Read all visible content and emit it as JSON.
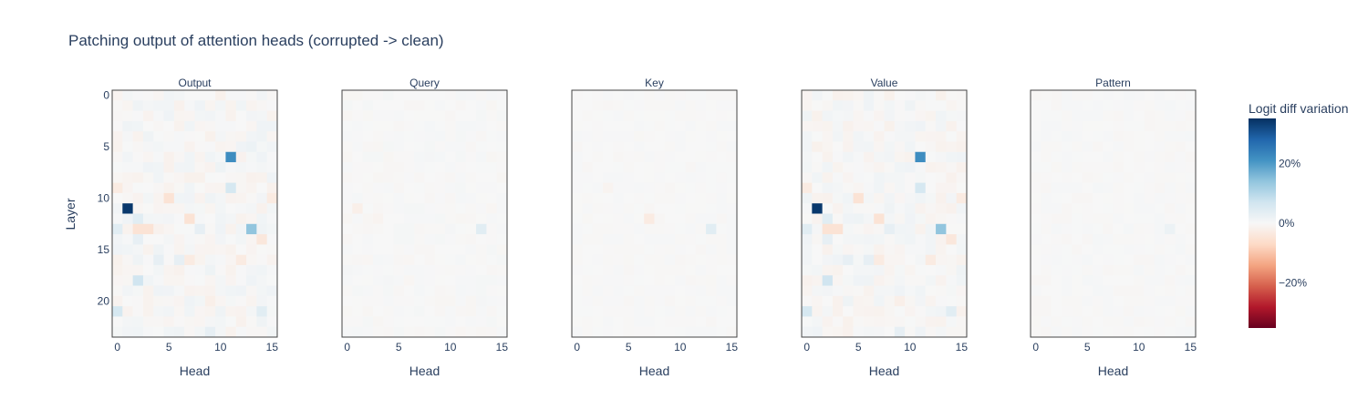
{
  "chart_data": {
    "type": "heatmap",
    "title": "Patching output of attention heads (corrupted -> clean)",
    "panels": [
      "Output",
      "Query",
      "Key",
      "Value",
      "Pattern"
    ],
    "xlabel": "Head",
    "ylabel": "Layer",
    "x_ticks": [
      0,
      5,
      10,
      15
    ],
    "y_ticks": [
      0,
      5,
      10,
      15,
      20
    ],
    "x_range": [
      0,
      15
    ],
    "y_range": [
      0,
      23
    ],
    "colorbar": {
      "title": "Logit diff variation",
      "tick_labels": [
        "20%",
        "0%",
        "−20%"
      ],
      "tick_values": [
        20,
        0,
        -20
      ],
      "range": [
        -35,
        35
      ],
      "colorscale": [
        "#67001f",
        "#b2182b",
        "#d6604d",
        "#f4a582",
        "#fddbc7",
        "#f7f7f7",
        "#d1e5f0",
        "#92c5de",
        "#4393c3",
        "#2166ac",
        "#053061"
      ]
    },
    "notable_cells": {
      "Output": [
        {
          "layer": 11,
          "head": 1,
          "value": 34
        },
        {
          "layer": 6,
          "head": 11,
          "value": 22
        },
        {
          "layer": 13,
          "head": 13,
          "value": 14
        },
        {
          "layer": 9,
          "head": 11,
          "value": 6
        },
        {
          "layer": 18,
          "head": 2,
          "value": 7
        },
        {
          "layer": 21,
          "head": 0,
          "value": 6
        },
        {
          "layer": 13,
          "head": 0,
          "value": 4
        },
        {
          "layer": 12,
          "head": 2,
          "value": 4
        },
        {
          "layer": 21,
          "head": 14,
          "value": 4
        },
        {
          "layer": 23,
          "head": 9,
          "value": 3
        },
        {
          "layer": 16,
          "head": 4,
          "value": 3
        },
        {
          "layer": 16,
          "head": 6,
          "value": 3
        },
        {
          "layer": 13,
          "head": 8,
          "value": 3
        },
        {
          "layer": 14,
          "head": 2,
          "value": 3
        },
        {
          "layer": 5,
          "head": 13,
          "value": 2
        },
        {
          "layer": 10,
          "head": 5,
          "value": -5
        },
        {
          "layer": 13,
          "head": 2,
          "value": -5
        },
        {
          "layer": 13,
          "head": 3,
          "value": -5
        },
        {
          "layer": 12,
          "head": 7,
          "value": -5
        },
        {
          "layer": 14,
          "head": 14,
          "value": -4
        },
        {
          "layer": 16,
          "head": 7,
          "value": -3
        },
        {
          "layer": 16,
          "head": 12,
          "value": -3
        },
        {
          "layer": 9,
          "head": 0,
          "value": -3
        },
        {
          "layer": 10,
          "head": 15,
          "value": -3
        },
        {
          "layer": 20,
          "head": 9,
          "value": -2
        }
      ],
      "Query": [
        {
          "layer": 13,
          "head": 13,
          "value": 4
        },
        {
          "layer": 11,
          "head": 1,
          "value": -2
        },
        {
          "layer": 12,
          "head": 3,
          "value": -1
        }
      ],
      "Key": [
        {
          "layer": 13,
          "head": 13,
          "value": 4
        },
        {
          "layer": 12,
          "head": 7,
          "value": -3
        },
        {
          "layer": 9,
          "head": 3,
          "value": -1
        }
      ],
      "Value": [
        {
          "layer": 11,
          "head": 1,
          "value": 34
        },
        {
          "layer": 6,
          "head": 11,
          "value": 22
        },
        {
          "layer": 13,
          "head": 13,
          "value": 14
        },
        {
          "layer": 9,
          "head": 11,
          "value": 6
        },
        {
          "layer": 18,
          "head": 2,
          "value": 7
        },
        {
          "layer": 21,
          "head": 0,
          "value": 6
        },
        {
          "layer": 13,
          "head": 0,
          "value": 4
        },
        {
          "layer": 12,
          "head": 2,
          "value": 4
        },
        {
          "layer": 21,
          "head": 14,
          "value": 4
        },
        {
          "layer": 23,
          "head": 9,
          "value": 3
        },
        {
          "layer": 16,
          "head": 4,
          "value": 3
        },
        {
          "layer": 16,
          "head": 6,
          "value": 3
        },
        {
          "layer": 13,
          "head": 8,
          "value": 3
        },
        {
          "layer": 14,
          "head": 2,
          "value": 3
        },
        {
          "layer": 10,
          "head": 5,
          "value": -5
        },
        {
          "layer": 13,
          "head": 2,
          "value": -5
        },
        {
          "layer": 13,
          "head": 3,
          "value": -5
        },
        {
          "layer": 12,
          "head": 7,
          "value": -5
        },
        {
          "layer": 14,
          "head": 14,
          "value": -4
        },
        {
          "layer": 16,
          "head": 7,
          "value": -3
        },
        {
          "layer": 16,
          "head": 12,
          "value": -3
        },
        {
          "layer": 9,
          "head": 0,
          "value": -3
        },
        {
          "layer": 10,
          "head": 15,
          "value": -3
        },
        {
          "layer": 20,
          "head": 9,
          "value": -2
        }
      ],
      "Pattern": [
        {
          "layer": 13,
          "head": 13,
          "value": 2
        }
      ]
    }
  }
}
